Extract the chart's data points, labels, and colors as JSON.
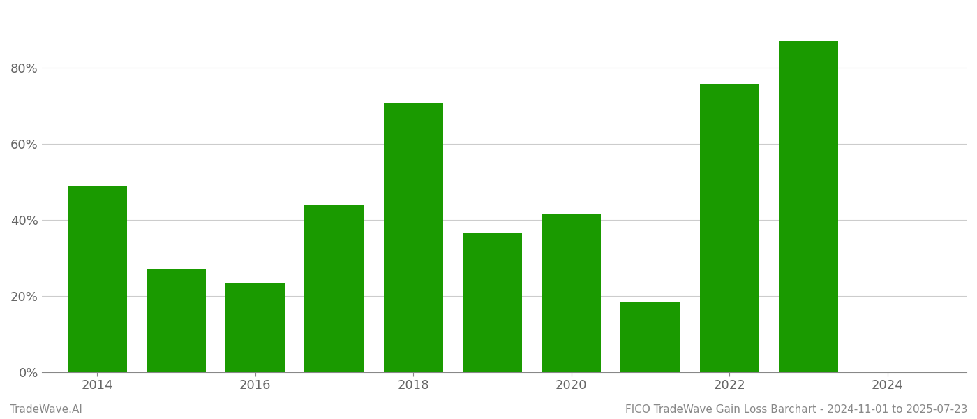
{
  "bar_x": [
    2014,
    2015,
    2016,
    2017,
    2018,
    2019,
    2020,
    2021,
    2022,
    2023
  ],
  "bar_values": [
    0.49,
    0.27,
    0.235,
    0.44,
    0.705,
    0.365,
    0.415,
    0.185,
    0.755,
    0.87
  ],
  "bar_color": "#1a9a00",
  "background_color": "#ffffff",
  "grid_color": "#cccccc",
  "axis_color": "#888888",
  "tick_label_color": "#666666",
  "xlim": [
    2013.3,
    2025.0
  ],
  "xlabel_ticks": [
    2014,
    2016,
    2018,
    2020,
    2022,
    2024
  ],
  "ylim": [
    0,
    0.95
  ],
  "yticks": [
    0.0,
    0.2,
    0.4,
    0.6,
    0.8
  ],
  "footer_left": "TradeWave.AI",
  "footer_right": "FICO TradeWave Gain Loss Barchart - 2024-11-01 to 2025-07-23",
  "footer_color": "#888888",
  "footer_fontsize": 11,
  "tick_fontsize": 13,
  "bar_width": 0.75
}
